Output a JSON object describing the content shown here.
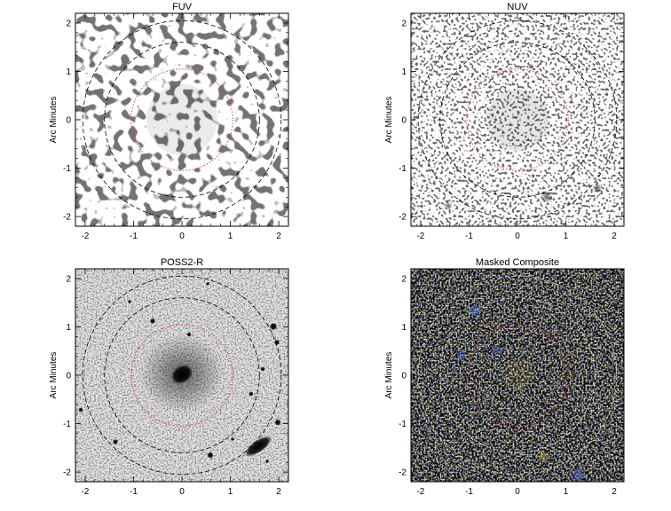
{
  "figure": {
    "panels": [
      {
        "id": "fuv",
        "title": "FUV",
        "ylabel": "Arc Minutes",
        "image": "noisy-gray-speckle",
        "inner_ring_color": "#e04040",
        "outer_ring_color": "#000000"
      },
      {
        "id": "nuv",
        "title": "NUV",
        "ylabel": "Arc Minutes",
        "image": "fine-gray-speckle",
        "inner_ring_color": "#e04040",
        "outer_ring_color": "#000000"
      },
      {
        "id": "poss2r",
        "title": "POSS2-R",
        "ylabel": "Arc Minutes",
        "image": "optical-galaxy",
        "inner_ring_color": "#e04040",
        "outer_ring_color": "#000000"
      },
      {
        "id": "composite",
        "title": "Masked Composite",
        "ylabel": "Arc Minutes",
        "image": "dark-color-composite",
        "inner_ring_color": "#c03030",
        "outer_ring_color": "#d8d8b0"
      }
    ],
    "x_ticks": [
      "-2",
      "-1",
      "0",
      "1",
      "2"
    ],
    "y_ticks": [
      "2",
      "1",
      "0",
      "-1",
      "-2"
    ],
    "axis_range": [
      -2.2,
      2.2
    ]
  }
}
